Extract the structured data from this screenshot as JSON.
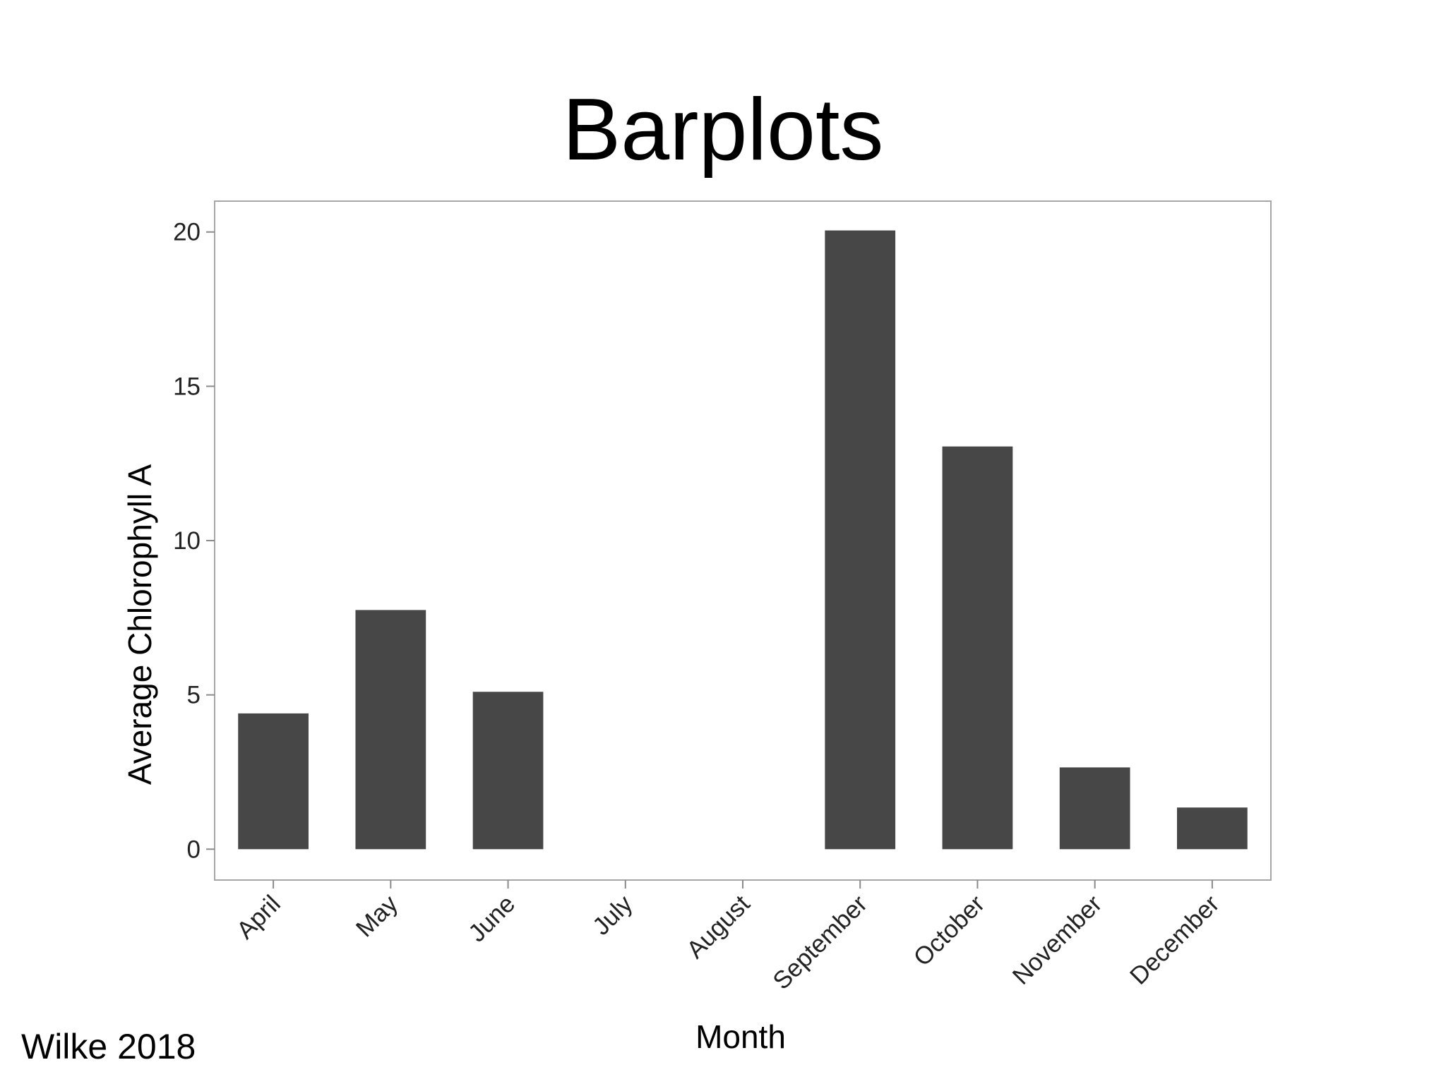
{
  "slide": {
    "title": "Barplots",
    "citation": "Wilke 2018"
  },
  "chart_data": {
    "type": "bar",
    "title": "",
    "xlabel": "Month",
    "ylabel": "Average Chlorophyll A",
    "categories": [
      "April",
      "May",
      "June",
      "July",
      "August",
      "September",
      "October",
      "November",
      "December"
    ],
    "values": [
      4.4,
      7.75,
      5.1,
      0,
      0,
      20.05,
      13.05,
      2.65,
      1.35
    ],
    "ylim": [
      -1,
      21
    ],
    "yticks": [
      0,
      5,
      10,
      15,
      20
    ],
    "grid": false,
    "legend": "none",
    "colors": {
      "bar": "#474747",
      "panel_border": "#a6a6a6",
      "tick": "#8a8a8a",
      "text": "#222222"
    }
  }
}
